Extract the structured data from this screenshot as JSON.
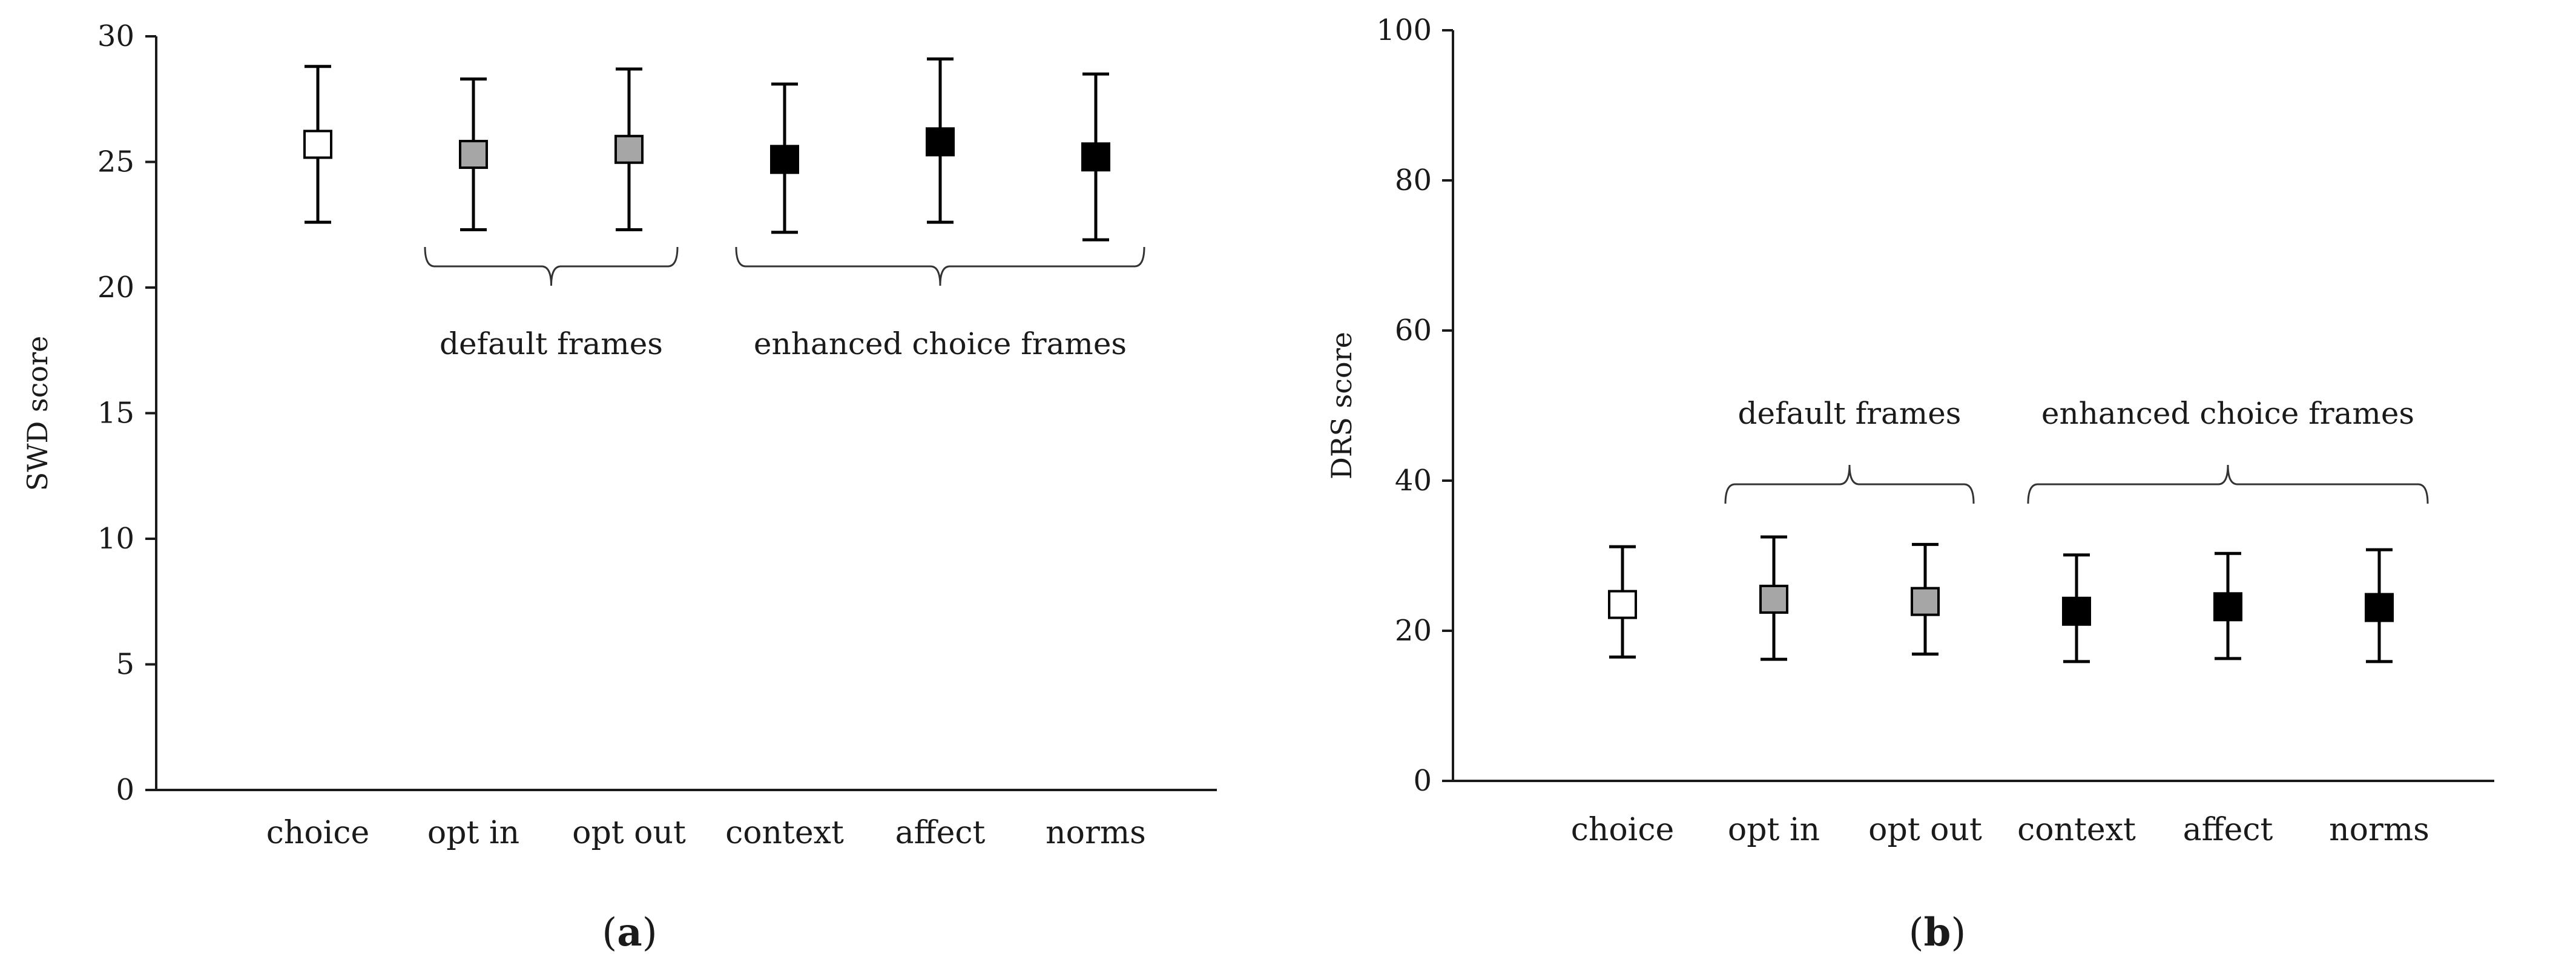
{
  "chart_data": [
    {
      "type": "scatter",
      "panel_label": "a",
      "ylabel": "SWD score",
      "ylim": [
        0,
        30
      ],
      "yticks": [
        "0",
        "5",
        "10",
        "15",
        "20",
        "25",
        "30"
      ],
      "categories": [
        "choice",
        "opt in",
        "opt out",
        "context",
        "affect",
        "norms"
      ],
      "points": [
        {
          "category": "choice",
          "mean": 25.7,
          "upper": 28.8,
          "lower": 22.6,
          "fill": "white"
        },
        {
          "category": "opt in",
          "mean": 25.3,
          "upper": 28.3,
          "lower": 22.3,
          "fill": "gray"
        },
        {
          "category": "opt out",
          "mean": 25.5,
          "upper": 28.7,
          "lower": 22.3,
          "fill": "gray"
        },
        {
          "category": "context",
          "mean": 25.1,
          "upper": 28.1,
          "lower": 22.2,
          "fill": "black"
        },
        {
          "category": "affect",
          "mean": 25.8,
          "upper": 29.1,
          "lower": 22.6,
          "fill": "black"
        },
        {
          "category": "norms",
          "mean": 25.2,
          "upper": 28.5,
          "lower": 21.9,
          "fill": "black"
        }
      ],
      "groups": [
        {
          "label": "default frames",
          "from": "opt in",
          "to": "opt out"
        },
        {
          "label": "enhanced choice frames",
          "from": "context",
          "to": "norms"
        }
      ],
      "grid": false,
      "legend": "none"
    },
    {
      "type": "scatter",
      "panel_label": "b",
      "ylabel": "DRS score",
      "ylim": [
        0,
        100
      ],
      "yticks": [
        "0",
        "20",
        "40",
        "60",
        "80",
        "100"
      ],
      "categories": [
        "choice",
        "opt in",
        "opt out",
        "context",
        "affect",
        "norms"
      ],
      "points": [
        {
          "category": "choice",
          "mean": 23.5,
          "upper": 31.2,
          "lower": 16.5,
          "fill": "white"
        },
        {
          "category": "opt in",
          "mean": 24.2,
          "upper": 32.5,
          "lower": 16.2,
          "fill": "gray"
        },
        {
          "category": "opt out",
          "mean": 23.9,
          "upper": 31.5,
          "lower": 16.9,
          "fill": "gray"
        },
        {
          "category": "context",
          "mean": 22.6,
          "upper": 30.1,
          "lower": 15.9,
          "fill": "black"
        },
        {
          "category": "affect",
          "mean": 23.2,
          "upper": 30.3,
          "lower": 16.3,
          "fill": "black"
        },
        {
          "category": "norms",
          "mean": 23.1,
          "upper": 30.8,
          "lower": 15.9,
          "fill": "black"
        }
      ],
      "groups": [
        {
          "label": "default frames",
          "from": "opt in",
          "to": "opt out"
        },
        {
          "label": "enhanced choice frames",
          "from": "context",
          "to": "norms"
        }
      ],
      "grid": false,
      "legend": "none"
    }
  ],
  "colors": {
    "white": "#ffffff",
    "gray": "#a6a6a6",
    "black": "#000000",
    "axis": "#1a1a1a"
  }
}
